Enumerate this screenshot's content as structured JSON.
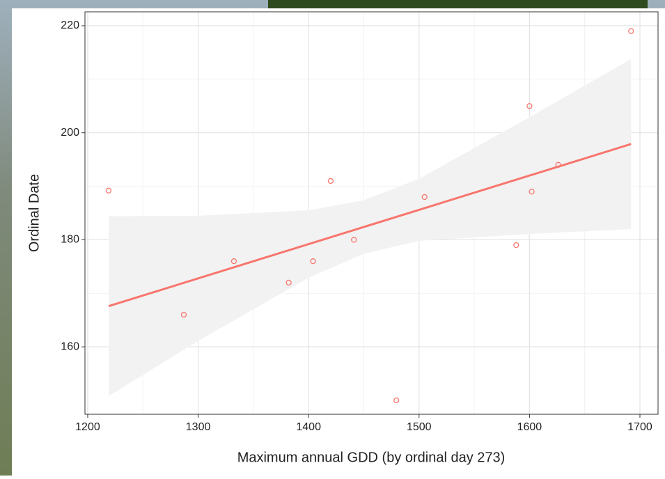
{
  "chart_data": {
    "type": "scatter",
    "xlabel": "Maximum annual GDD (by ordinal day 273)",
    "ylabel": "Ordinal Date",
    "x": [
      1218.9,
      1287,
      1332.4,
      1382,
      1404,
      1420,
      1441,
      1479.5,
      1505,
      1588,
      1600,
      1602,
      1626,
      1692
    ],
    "y": [
      189.2,
      166,
      176,
      172,
      176,
      191,
      180,
      150,
      188,
      179,
      205,
      189,
      194,
      219
    ],
    "color": "#f8766d",
    "fit": {
      "x": [
        1219,
        1692
      ],
      "y": [
        167.6,
        197.9
      ],
      "color": "#f8766d"
    },
    "ci": {
      "x": [
        1219,
        1300,
        1400,
        1450,
        1500,
        1600,
        1692
      ],
      "lower": [
        150.8,
        161.1,
        172.9,
        177.4,
        179.8,
        181.1,
        182.0
      ],
      "upper": [
        184.4,
        184.5,
        185.5,
        187.4,
        191.4,
        202.9,
        213.8
      ],
      "color": "#f2f2f2"
    },
    "xlim": [
      1197.5,
      1716.4
    ],
    "ylim": [
      147.4,
      222.6
    ],
    "xticks": [
      1200,
      1300,
      1400,
      1500,
      1600,
      1700
    ],
    "yticks": [
      160,
      180,
      200,
      220
    ],
    "grid": true
  }
}
